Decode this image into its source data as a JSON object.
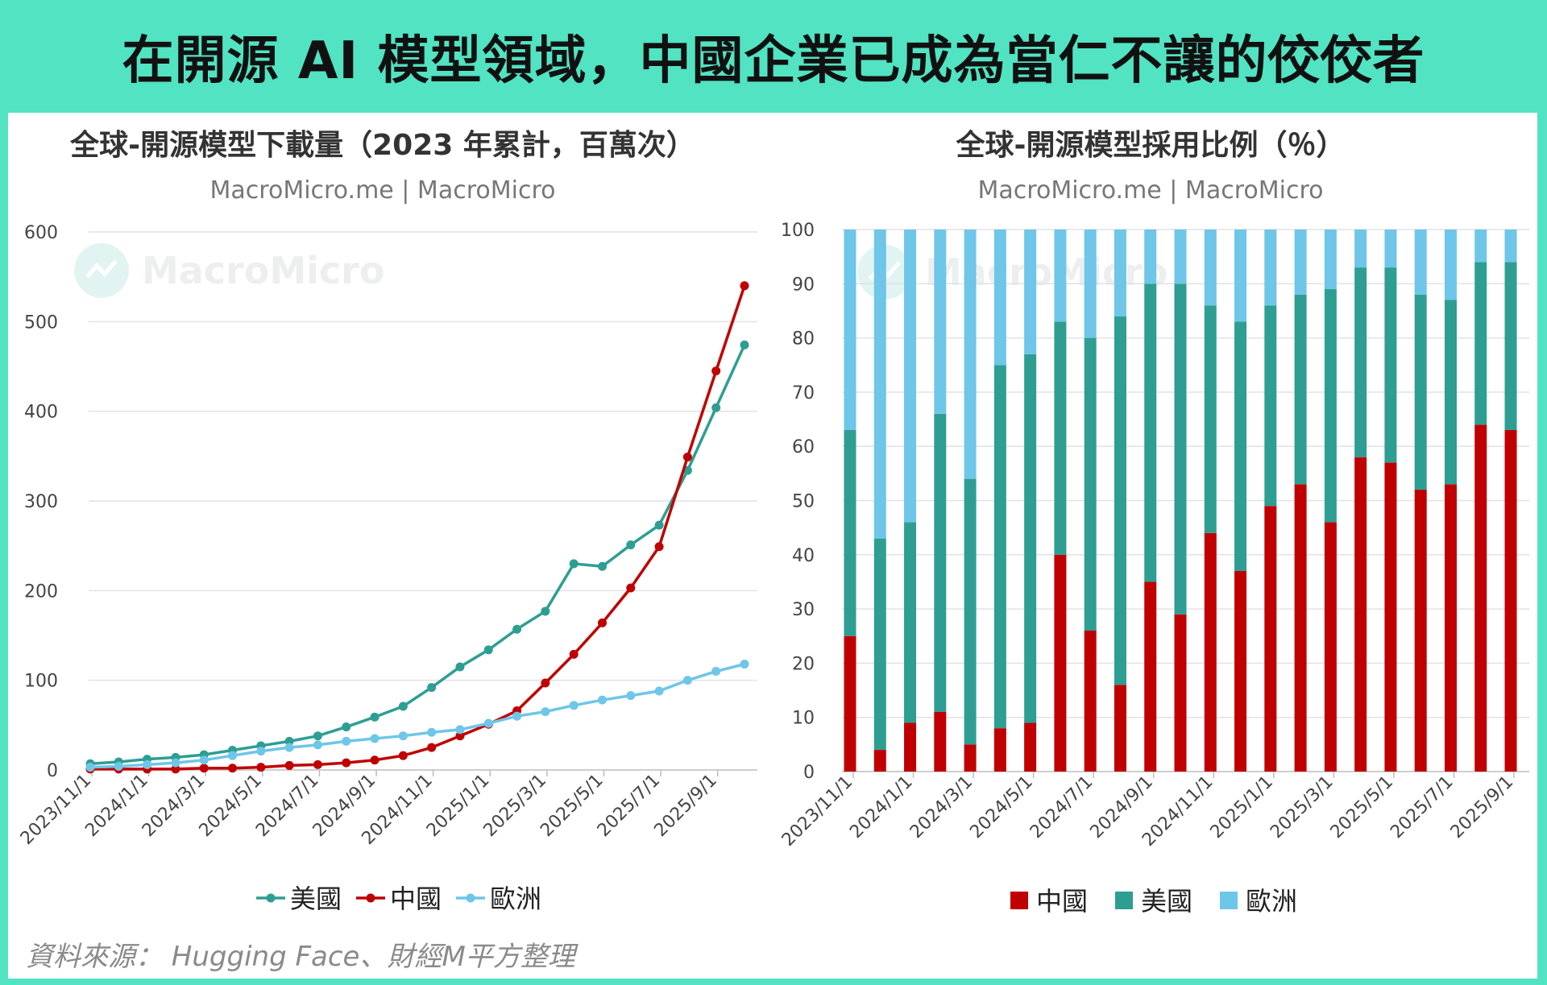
{
  "headline": "在開源 AI 模型領域，中國企業已成為當仁不讓的佼佼者",
  "source": "資料來源： Hugging Face、財經M平方整理",
  "watermark": "MacroMicro",
  "colors": {
    "background": "#52e3c2",
    "usa": "#2e9e93",
    "china": "#c00000",
    "europe": "#6ec6e8"
  },
  "chart_data": [
    {
      "type": "line",
      "title": "全球-開源模型下載量（2023 年累計，百萬次）",
      "subtitle": "MacroMicro.me | MacroMicro",
      "ylim": [
        0,
        600
      ],
      "yticks": [
        0,
        100,
        200,
        300,
        400,
        500,
        600
      ],
      "xtick_labels": [
        "2023/11/1",
        "2024/1/1",
        "2024/3/1",
        "2024/5/1",
        "2024/7/1",
        "2024/9/1",
        "2024/11/1",
        "2025/1/1",
        "2025/3/1",
        "2025/5/1",
        "2025/7/1",
        "2025/9/1"
      ],
      "x": [
        "2023/11/1",
        "2023/12/1",
        "2024/1/1",
        "2024/2/1",
        "2024/3/1",
        "2024/4/1",
        "2024/5/1",
        "2024/6/1",
        "2024/7/1",
        "2024/8/1",
        "2024/9/1",
        "2024/10/1",
        "2024/11/1",
        "2024/12/1",
        "2025/1/1",
        "2025/2/1",
        "2025/3/1",
        "2025/4/1",
        "2025/5/1",
        "2025/6/1",
        "2025/7/1",
        "2025/8/1",
        "2025/9/1",
        "2025/10/1"
      ],
      "grid": true,
      "legend_position": "bottom",
      "series": [
        {
          "name": "美國",
          "color": "#2e9e93",
          "values": [
            7,
            9,
            12,
            14,
            17,
            22,
            27,
            32,
            38,
            48,
            59,
            71,
            92,
            115,
            134,
            157,
            177,
            230,
            227,
            251,
            273,
            334,
            404,
            474
          ]
        },
        {
          "name": "中國",
          "color": "#c00000",
          "values": [
            1,
            1,
            1,
            1,
            2,
            2,
            3,
            5,
            6,
            8,
            11,
            16,
            25,
            38,
            51,
            66,
            97,
            129,
            164,
            203,
            249,
            349,
            445,
            540
          ]
        },
        {
          "name": "歐洲",
          "color": "#6ec6e8",
          "values": [
            3,
            4,
            6,
            8,
            11,
            16,
            21,
            25,
            28,
            32,
            35,
            38,
            42,
            45,
            52,
            60,
            65,
            72,
            78,
            83,
            88,
            100,
            110,
            118
          ]
        }
      ]
    },
    {
      "type": "bar",
      "stacked": true,
      "title": "全球-開源模型採用比例（％）",
      "subtitle": "MacroMicro.me | MacroMicro",
      "ylim": [
        0,
        100
      ],
      "yticks": [
        0,
        10,
        20,
        30,
        40,
        50,
        60,
        70,
        80,
        90,
        100
      ],
      "xtick_labels": [
        "2023/11/1",
        "2024/1/1",
        "2024/3/1",
        "2024/5/1",
        "2024/7/1",
        "2024/9/1",
        "2024/11/1",
        "2025/1/1",
        "2025/3/1",
        "2025/5/1",
        "2025/7/1",
        "2025/9/1"
      ],
      "categories": [
        "2023/11/1",
        "2023/12/1",
        "2024/1/1",
        "2024/2/1",
        "2024/3/1",
        "2024/4/1",
        "2024/5/1",
        "2024/6/1",
        "2024/7/1",
        "2024/8/1",
        "2024/9/1",
        "2024/10/1",
        "2024/11/1",
        "2024/12/1",
        "2025/1/1",
        "2025/2/1",
        "2025/3/1",
        "2025/4/1",
        "2025/5/1",
        "2025/6/1",
        "2025/7/1",
        "2025/8/1",
        "2025/9/1"
      ],
      "grid": true,
      "legend_position": "bottom",
      "series": [
        {
          "name": "中國",
          "color": "#c00000",
          "values": [
            25,
            4,
            9,
            11,
            5,
            8,
            9,
            40,
            26,
            16,
            35,
            29,
            44,
            37,
            49,
            53,
            46,
            58,
            57,
            52,
            53,
            64,
            63
          ]
        },
        {
          "name": "美國",
          "color": "#2e9e93",
          "values": [
            38,
            39,
            37,
            55,
            49,
            67,
            68,
            43,
            54,
            68,
            55,
            61,
            42,
            46,
            37,
            35,
            43,
            35,
            36,
            36,
            34,
            30,
            31
          ]
        },
        {
          "name": "歐洲",
          "color": "#6ec6e8",
          "values": [
            37,
            57,
            54,
            34,
            46,
            25,
            23,
            17,
            20,
            16,
            10,
            10,
            14,
            17,
            14,
            12,
            11,
            7,
            7,
            12,
            13,
            6,
            6
          ]
        }
      ]
    }
  ]
}
